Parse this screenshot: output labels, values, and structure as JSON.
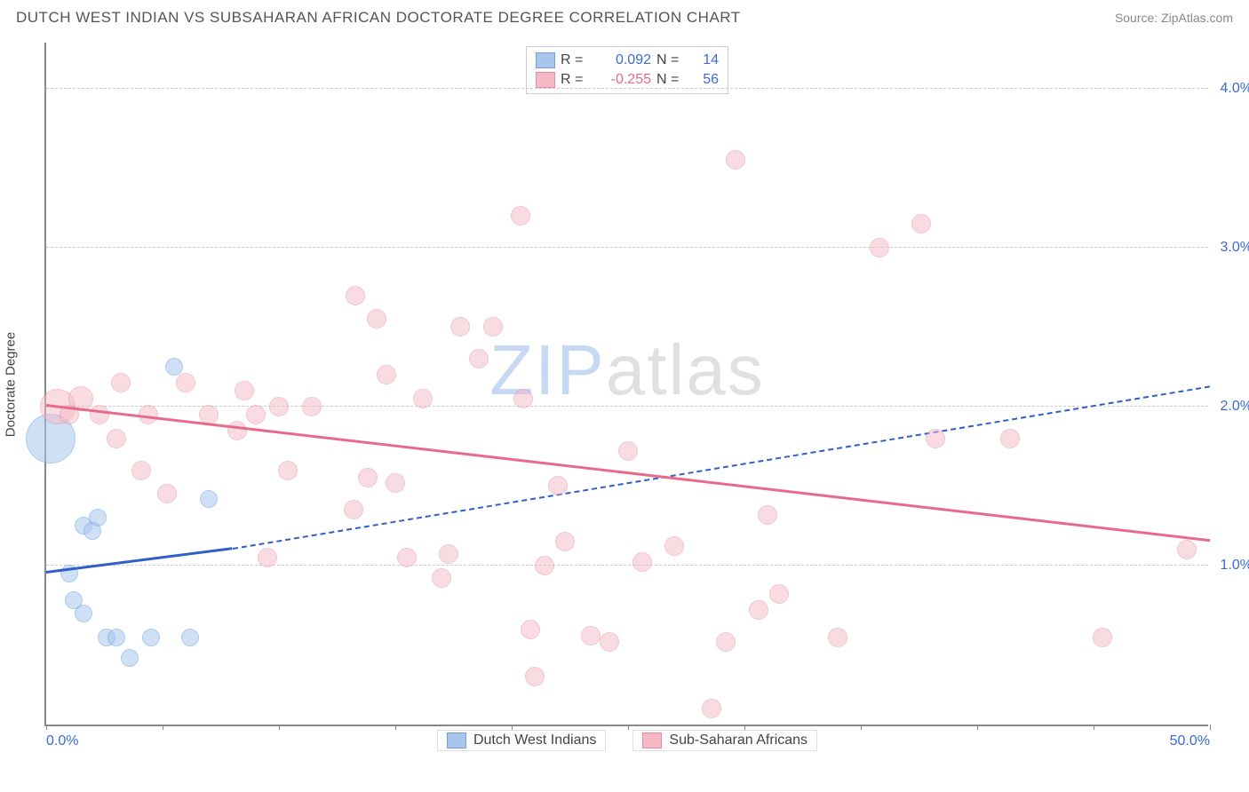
{
  "header": {
    "title": "DUTCH WEST INDIAN VS SUBSAHARAN AFRICAN DOCTORATE DEGREE CORRELATION CHART",
    "source": "Source: ZipAtlas.com"
  },
  "chart": {
    "type": "scatter",
    "ylabel": "Doctorate Degree",
    "xlim": [
      0,
      50
    ],
    "ylim": [
      0,
      4.3
    ],
    "background_color": "#ffffff",
    "grid_color": "#cccccc",
    "axis_color": "#888888",
    "tick_label_color": "#3a6bd6",
    "tick_fontsize": 16,
    "yticks": [
      {
        "v": 1.0,
        "label": "1.0%"
      },
      {
        "v": 2.0,
        "label": "2.0%"
      },
      {
        "v": 3.0,
        "label": "3.0%"
      },
      {
        "v": 4.0,
        "label": "4.0%"
      }
    ],
    "xticks_major": [
      0,
      5,
      10,
      15,
      20,
      25,
      30,
      35,
      40,
      45,
      50
    ],
    "xtick_labels": [
      {
        "v": 0,
        "label": "0.0%"
      },
      {
        "v": 50,
        "label": "50.0%"
      }
    ],
    "watermark": {
      "zip": "ZIP",
      "atlas": "atlas",
      "zip_color": "#c7d8f5",
      "atlas_color": "#e0e0e0",
      "fontsize": 80
    },
    "series": [
      {
        "name": "Dutch West Indians",
        "fill_color": "#a8c6ec",
        "stroke_color": "#6f9fde",
        "fill_opacity": 0.55,
        "marker_radius": 10,
        "points": [
          {
            "x": 0.2,
            "y": 1.8,
            "r": 28
          },
          {
            "x": 1.0,
            "y": 0.95,
            "r": 10
          },
          {
            "x": 1.6,
            "y": 1.25,
            "r": 10
          },
          {
            "x": 2.2,
            "y": 1.3,
            "r": 10
          },
          {
            "x": 2.0,
            "y": 1.22,
            "r": 10
          },
          {
            "x": 1.2,
            "y": 0.78,
            "r": 10
          },
          {
            "x": 1.6,
            "y": 0.7,
            "r": 10
          },
          {
            "x": 2.6,
            "y": 0.55,
            "r": 10
          },
          {
            "x": 3.0,
            "y": 0.55,
            "r": 10
          },
          {
            "x": 4.5,
            "y": 0.55,
            "r": 10
          },
          {
            "x": 3.6,
            "y": 0.42,
            "r": 10
          },
          {
            "x": 6.2,
            "y": 0.55,
            "r": 10
          },
          {
            "x": 7.0,
            "y": 1.42,
            "r": 10
          },
          {
            "x": 5.5,
            "y": 2.25,
            "r": 10
          }
        ],
        "trend": {
          "color": "#2f5fc9",
          "width": 3,
          "solid_from": {
            "x": 0,
            "y": 0.95
          },
          "solid_to": {
            "x": 8,
            "y": 1.1
          },
          "dashed_to": {
            "x": 50,
            "y": 2.12
          }
        }
      },
      {
        "name": "Sub-Saharan Africans",
        "fill_color": "#f5b9c6",
        "stroke_color": "#e98aa0",
        "fill_opacity": 0.5,
        "marker_radius": 11,
        "points": [
          {
            "x": 0.5,
            "y": 2.0,
            "r": 20
          },
          {
            "x": 1.5,
            "y": 2.05,
            "r": 14
          },
          {
            "x": 1.0,
            "y": 1.95,
            "r": 11
          },
          {
            "x": 3.2,
            "y": 2.15,
            "r": 11
          },
          {
            "x": 2.3,
            "y": 1.95,
            "r": 11
          },
          {
            "x": 4.4,
            "y": 1.95,
            "r": 11
          },
          {
            "x": 3.0,
            "y": 1.8,
            "r": 11
          },
          {
            "x": 4.1,
            "y": 1.6,
            "r": 11
          },
          {
            "x": 5.2,
            "y": 1.45,
            "r": 11
          },
          {
            "x": 6.0,
            "y": 2.15,
            "r": 11
          },
          {
            "x": 7.0,
            "y": 1.95,
            "r": 11
          },
          {
            "x": 8.2,
            "y": 1.85,
            "r": 11
          },
          {
            "x": 8.5,
            "y": 2.1,
            "r": 11
          },
          {
            "x": 9.0,
            "y": 1.95,
            "r": 11
          },
          {
            "x": 9.5,
            "y": 1.05,
            "r": 11
          },
          {
            "x": 10.0,
            "y": 2.0,
            "r": 11
          },
          {
            "x": 10.4,
            "y": 1.6,
            "r": 11
          },
          {
            "x": 11.4,
            "y": 2.0,
            "r": 11
          },
          {
            "x": 13.3,
            "y": 2.7,
            "r": 11
          },
          {
            "x": 13.8,
            "y": 1.55,
            "r": 11
          },
          {
            "x": 14.2,
            "y": 2.55,
            "r": 11
          },
          {
            "x": 14.6,
            "y": 2.2,
            "r": 11
          },
          {
            "x": 15.0,
            "y": 1.52,
            "r": 11
          },
          {
            "x": 15.5,
            "y": 1.05,
            "r": 11
          },
          {
            "x": 16.2,
            "y": 2.05,
            "r": 11
          },
          {
            "x": 17.8,
            "y": 2.5,
            "r": 11
          },
          {
            "x": 17.3,
            "y": 1.07,
            "r": 11
          },
          {
            "x": 17.0,
            "y": 0.92,
            "r": 11
          },
          {
            "x": 18.6,
            "y": 2.3,
            "r": 11
          },
          {
            "x": 19.2,
            "y": 2.5,
            "r": 11
          },
          {
            "x": 20.4,
            "y": 3.2,
            "r": 11
          },
          {
            "x": 20.5,
            "y": 2.05,
            "r": 11
          },
          {
            "x": 20.8,
            "y": 0.6,
            "r": 11
          },
          {
            "x": 21.4,
            "y": 1.0,
            "r": 11
          },
          {
            "x": 21.0,
            "y": 0.3,
            "r": 11
          },
          {
            "x": 22.0,
            "y": 1.5,
            "r": 11
          },
          {
            "x": 22.3,
            "y": 1.15,
            "r": 11
          },
          {
            "x": 23.4,
            "y": 0.56,
            "r": 11
          },
          {
            "x": 25.0,
            "y": 1.72,
            "r": 11
          },
          {
            "x": 25.6,
            "y": 1.02,
            "r": 11
          },
          {
            "x": 24.2,
            "y": 0.52,
            "r": 11
          },
          {
            "x": 27.0,
            "y": 1.12,
            "r": 11
          },
          {
            "x": 28.6,
            "y": 0.1,
            "r": 11
          },
          {
            "x": 29.2,
            "y": 0.52,
            "r": 11
          },
          {
            "x": 29.6,
            "y": 3.55,
            "r": 11
          },
          {
            "x": 30.6,
            "y": 0.72,
            "r": 11
          },
          {
            "x": 31.0,
            "y": 1.32,
            "r": 11
          },
          {
            "x": 31.5,
            "y": 0.82,
            "r": 11
          },
          {
            "x": 34.0,
            "y": 0.55,
            "r": 11
          },
          {
            "x": 35.8,
            "y": 3.0,
            "r": 11
          },
          {
            "x": 37.6,
            "y": 3.15,
            "r": 11
          },
          {
            "x": 38.2,
            "y": 1.8,
            "r": 11
          },
          {
            "x": 41.4,
            "y": 1.8,
            "r": 11
          },
          {
            "x": 45.4,
            "y": 0.55,
            "r": 11
          },
          {
            "x": 49.0,
            "y": 1.1,
            "r": 11
          },
          {
            "x": 13.2,
            "y": 1.35,
            "r": 11
          }
        ],
        "trend": {
          "color": "#e86a8b",
          "width": 3,
          "solid_from": {
            "x": 0,
            "y": 2.0
          },
          "solid_to": {
            "x": 50,
            "y": 1.15
          }
        }
      }
    ],
    "legend_top": {
      "border_color": "#cccccc",
      "rows": [
        {
          "swatch_fill": "#a8c6ec",
          "swatch_stroke": "#6f9fde",
          "r_label": "R =",
          "r_value": "0.092",
          "r_color": "#3a6bd6",
          "n_label": "N =",
          "n_value": "14",
          "n_color": "#3a6bd6"
        },
        {
          "swatch_fill": "#f5b9c6",
          "swatch_stroke": "#e98aa0",
          "r_label": "R =",
          "r_value": "-0.255",
          "r_color": "#e86a8b",
          "n_label": "N =",
          "n_value": "56",
          "n_color": "#3a6bd6"
        }
      ]
    },
    "legend_bottom": [
      {
        "swatch_fill": "#a8c6ec",
        "swatch_stroke": "#6f9fde",
        "label": "Dutch West Indians"
      },
      {
        "swatch_fill": "#f5b9c6",
        "swatch_stroke": "#e98aa0",
        "label": "Sub-Saharan Africans"
      }
    ]
  }
}
